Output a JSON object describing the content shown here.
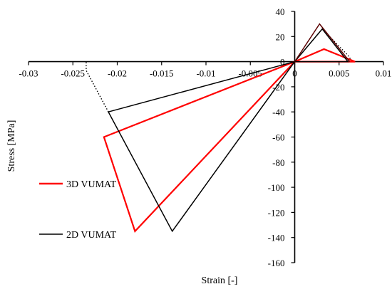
{
  "chart_data": {
    "type": "line",
    "title": "",
    "xlabel": "Strain [-]",
    "ylabel": "Stress [MPa]",
    "xlim": [
      -0.03,
      0.01
    ],
    "ylim": [
      -160,
      40
    ],
    "x_ticks": [
      -0.03,
      -0.025,
      -0.02,
      -0.015,
      -0.01,
      -0.005,
      0,
      0.005,
      0.01
    ],
    "x_tick_labels": [
      "-0.03",
      "-0.025",
      "-0.02",
      "-0.015",
      "-0.01",
      "-0.005",
      "0",
      "0.005",
      "0.01"
    ],
    "y_ticks": [
      40,
      20,
      0,
      -20,
      -40,
      -60,
      -80,
      -100,
      -120,
      -140,
      -160
    ],
    "y_tick_labels": [
      "40",
      "20",
      "0",
      "-20",
      "-40",
      "-60",
      "-80",
      "-100",
      "-120",
      "-140",
      "-160"
    ],
    "grid": false,
    "series": [
      {
        "name": "3D VUMAT",
        "color": "#ff0000",
        "x": [
          0,
          0.0033,
          0.0068,
          0,
          -0.0215,
          -0.018,
          0
        ],
        "y": [
          0,
          10,
          0,
          0,
          -60,
          -135,
          0
        ]
      },
      {
        "name": "2D VUMAT",
        "color": "#000000",
        "x": [
          0,
          0.0031,
          0.006,
          0,
          -0.021,
          -0.0138,
          0
        ],
        "y": [
          0,
          26,
          0,
          0,
          -40,
          -135,
          0
        ]
      },
      {
        "name": "",
        "color": "#5a0000",
        "x": [
          0,
          0.0028,
          0.0062
        ],
        "y": [
          0,
          30,
          0
        ]
      }
    ],
    "dotted_extensions": [
      {
        "color": "#000000",
        "x": [
          -0.021,
          -0.0235,
          -0.0235
        ],
        "y": [
          -40,
          -7,
          0
        ]
      },
      {
        "color": "#000000",
        "x": [
          0.0031,
          0.006,
          0.0065
        ],
        "y": [
          26,
          5,
          0
        ]
      }
    ]
  }
}
